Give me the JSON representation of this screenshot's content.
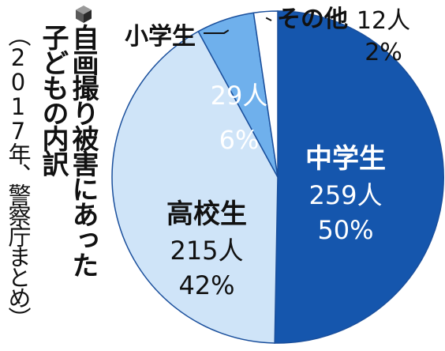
{
  "title": {
    "line1": "自画撮り被害にあった",
    "line2": "子どもの内訳"
  },
  "source": "（2017年、警察庁まとめ）",
  "icon": "cube-icon",
  "colors": {
    "ink": "#111111",
    "outline": "#1a4f9c"
  },
  "chart_data": {
    "type": "pie",
    "title": "自画撮り被害にあった子どもの内訳",
    "subtitle": "（2017年、警察庁まとめ）",
    "slices": [
      {
        "label": "中学生",
        "count": "259人",
        "percent": "50%",
        "value": 259,
        "color": "#1556ad",
        "text_color": "#ffffff"
      },
      {
        "label": "高校生",
        "count": "215人",
        "percent": "42%",
        "value": 215,
        "color": "#cfe4f8",
        "text_color": "#111111"
      },
      {
        "label": "小学生",
        "count": "29人",
        "percent": "6%",
        "value": 29,
        "color": "#6fb0ec",
        "text_color": "#ffffff"
      },
      {
        "label": "その他",
        "count": "12人",
        "percent": "2%",
        "value": 12,
        "color": "#ffffff",
        "text_color": "#111111"
      }
    ]
  }
}
